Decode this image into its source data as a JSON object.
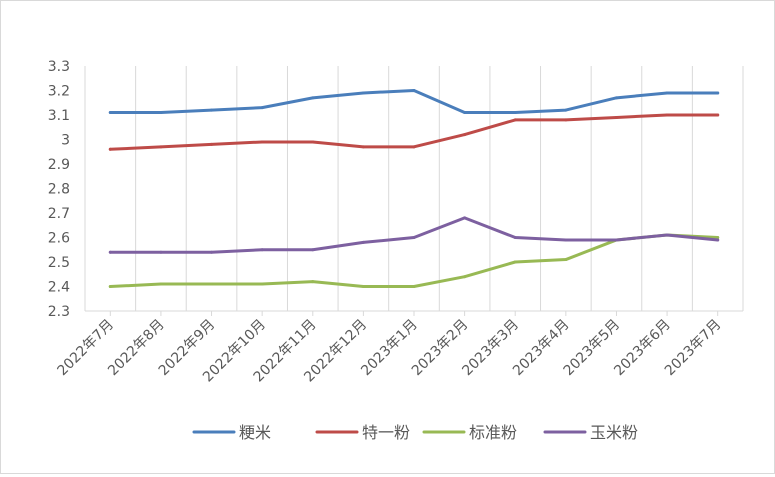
{
  "chart_data": {
    "type": "line",
    "title": "",
    "xlabel": "",
    "ylabel": "",
    "ylim": [
      2.3,
      3.3
    ],
    "yticks": [
      "2.3",
      "2.4",
      "2.5",
      "2.6",
      "2.7",
      "2.8",
      "2.9",
      "3",
      "3.1",
      "3.2",
      "3.3"
    ],
    "grid": "vertical",
    "legend_position": "bottom",
    "categories": [
      "2022年7月",
      "2022年8月",
      "2022年9月",
      "2022年10月",
      "2022年11月",
      "2022年12月",
      "2023年1月",
      "2023年2月",
      "2023年3月",
      "2023年4月",
      "2023年5月",
      "2023年6月",
      "2023年7月"
    ],
    "series": [
      {
        "name": "粳米",
        "color": "#4a7ebb",
        "values": [
          3.11,
          3.11,
          3.12,
          3.13,
          3.17,
          3.19,
          3.2,
          3.11,
          3.11,
          3.12,
          3.17,
          3.19,
          3.19
        ]
      },
      {
        "name": "特一粉",
        "color": "#be4b48",
        "values": [
          2.96,
          2.97,
          2.98,
          2.99,
          2.99,
          2.97,
          2.97,
          3.02,
          3.08,
          3.08,
          3.09,
          3.1,
          3.1
        ]
      },
      {
        "name": "标准粉",
        "color": "#98b954",
        "values": [
          2.4,
          2.41,
          2.41,
          2.41,
          2.42,
          2.4,
          2.4,
          2.44,
          2.5,
          2.51,
          2.59,
          2.61,
          2.6
        ]
      },
      {
        "name": "玉米粉",
        "color": "#7d60a0",
        "values": [
          2.54,
          2.54,
          2.54,
          2.55,
          2.55,
          2.58,
          2.6,
          2.68,
          2.6,
          2.59,
          2.59,
          2.61,
          2.59
        ]
      }
    ]
  }
}
